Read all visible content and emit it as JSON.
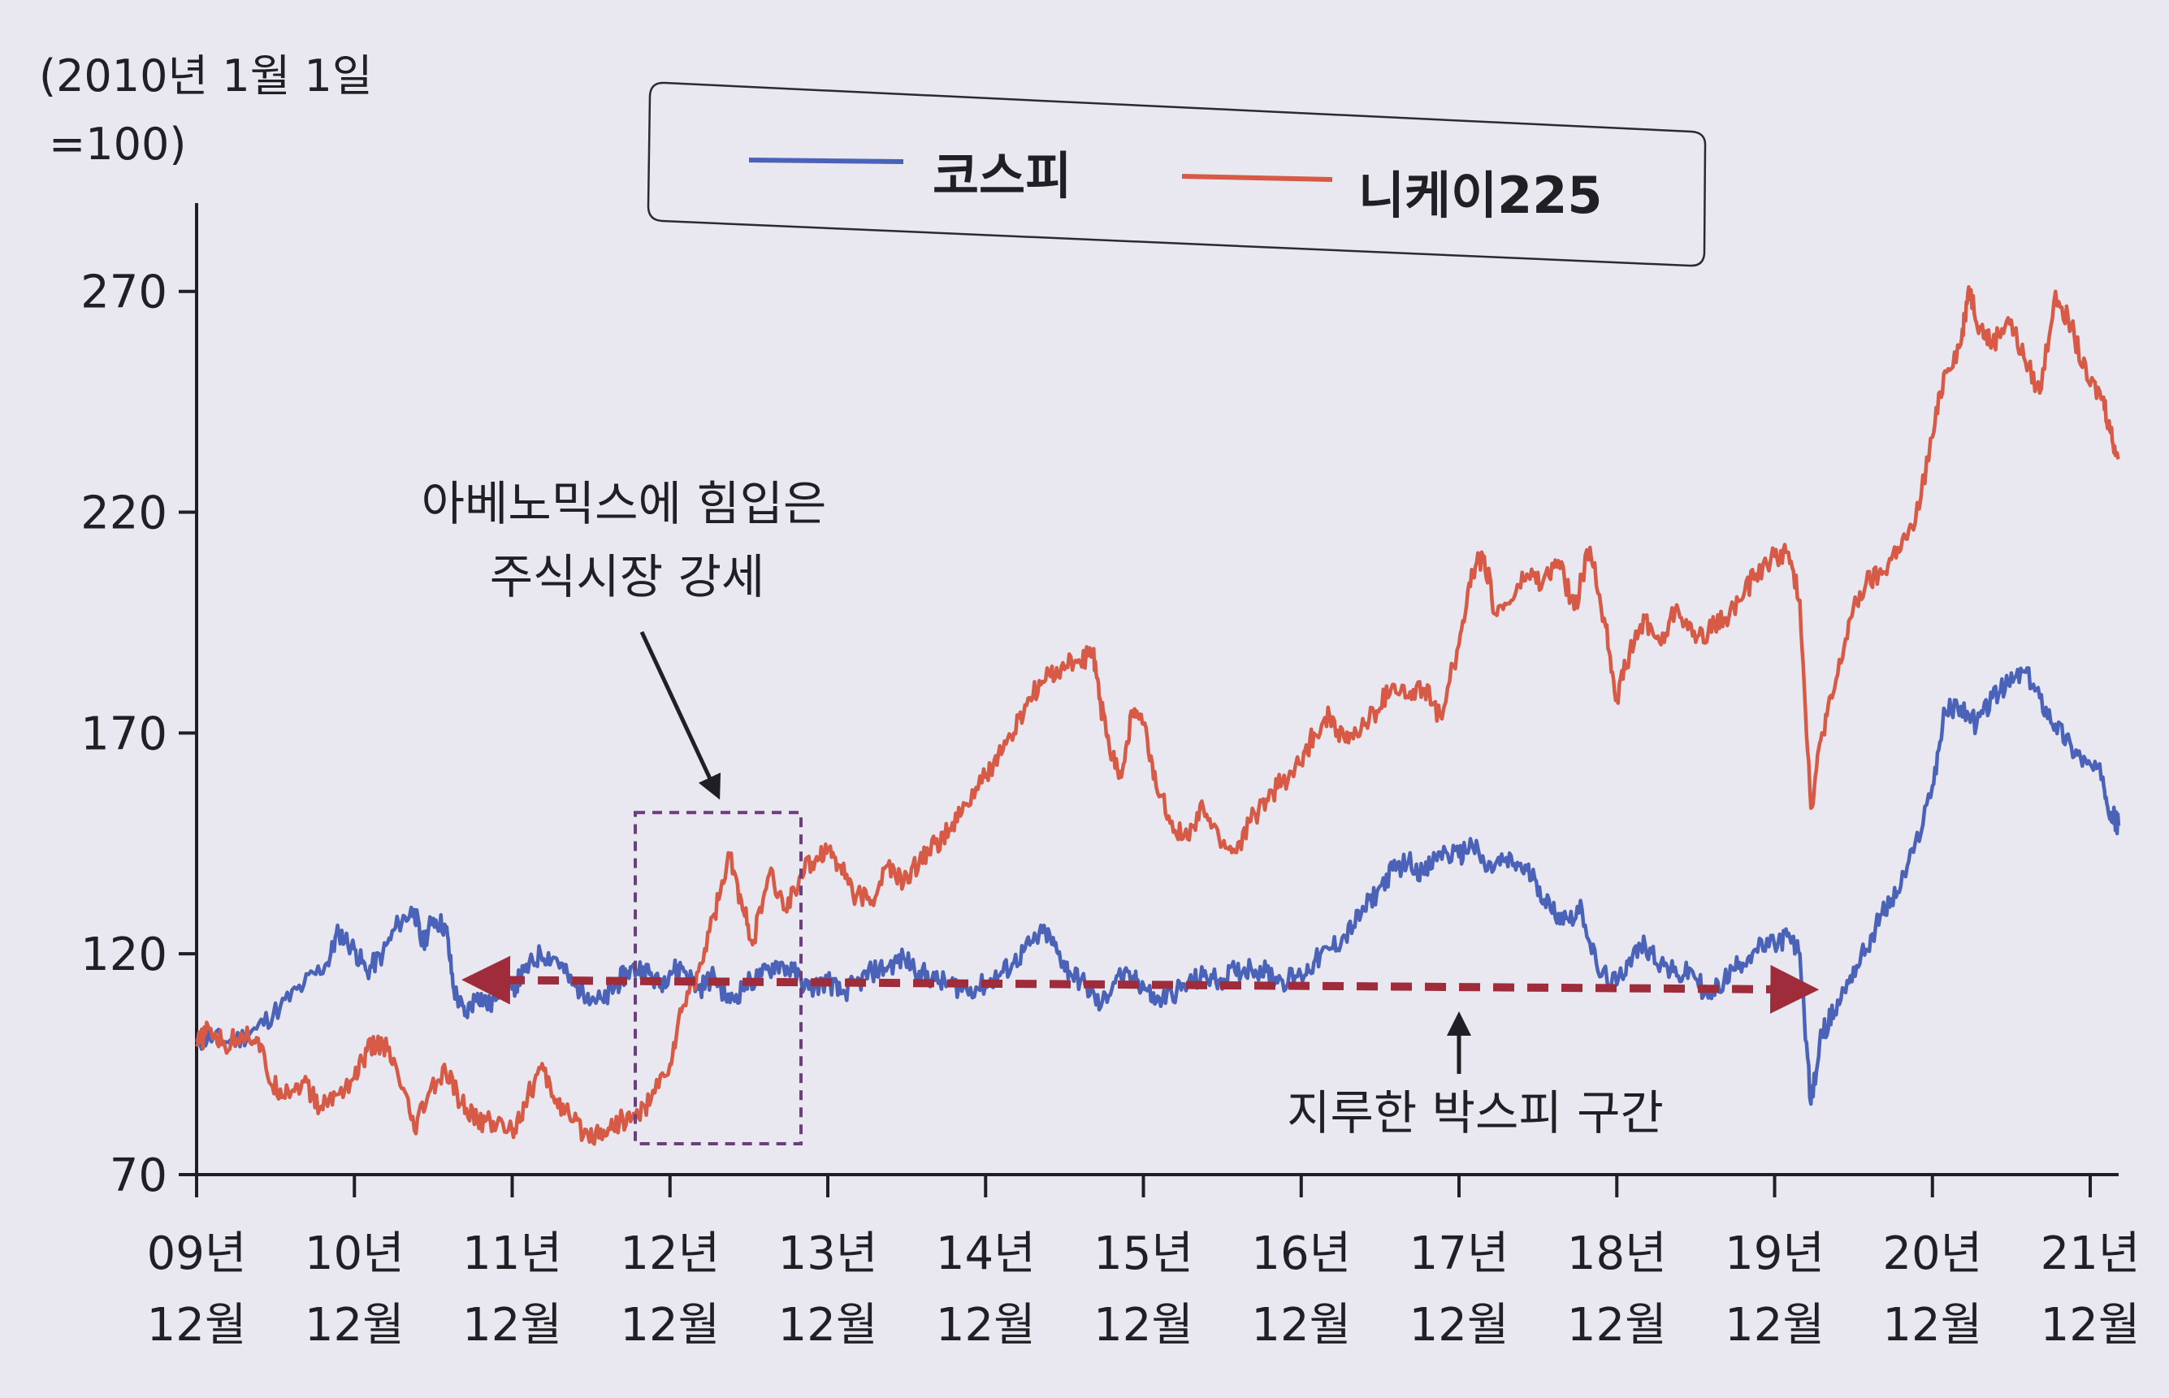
{
  "chart_data": {
    "type": "line",
    "title": "",
    "ylabel_lines": [
      "(2010년 1월 1일",
      "=100)"
    ],
    "xlabel": "",
    "ylim": [
      70,
      290
    ],
    "yticks": [
      70,
      120,
      170,
      220,
      270
    ],
    "xlim": [
      2009.92,
      2022.1
    ],
    "xticks": [
      {
        "x": 2009.92,
        "line1": "09년",
        "line2": "12월"
      },
      {
        "x": 2010.92,
        "line1": "10년",
        "line2": "12월"
      },
      {
        "x": 2011.92,
        "line1": "11년",
        "line2": "12월"
      },
      {
        "x": 2012.92,
        "line1": "12년",
        "line2": "12월"
      },
      {
        "x": 2013.92,
        "line1": "13년",
        "line2": "12월"
      },
      {
        "x": 2014.92,
        "line1": "14년",
        "line2": "12월"
      },
      {
        "x": 2015.92,
        "line1": "15년",
        "line2": "12월"
      },
      {
        "x": 2016.92,
        "line1": "16년",
        "line2": "12월"
      },
      {
        "x": 2017.92,
        "line1": "17년",
        "line2": "12월"
      },
      {
        "x": 2018.92,
        "line1": "18년",
        "line2": "12월"
      },
      {
        "x": 2019.92,
        "line1": "19년",
        "line2": "12월"
      },
      {
        "x": 2020.92,
        "line1": "20년",
        "line2": "12월"
      },
      {
        "x": 2021.92,
        "line1": "21년",
        "line2": "12월"
      }
    ],
    "legend_position": "top-center",
    "grid": false,
    "series": [
      {
        "name": "코스피",
        "color": "#4a63b8",
        "points": [
          [
            2009.92,
            100
          ],
          [
            2010.0,
            101
          ],
          [
            2010.15,
            100
          ],
          [
            2010.3,
            103
          ],
          [
            2010.45,
            108
          ],
          [
            2010.6,
            113
          ],
          [
            2010.75,
            118
          ],
          [
            2010.82,
            125
          ],
          [
            2010.92,
            121
          ],
          [
            2011.0,
            116
          ],
          [
            2011.1,
            120
          ],
          [
            2011.2,
            127
          ],
          [
            2011.3,
            130
          ],
          [
            2011.35,
            122
          ],
          [
            2011.42,
            128
          ],
          [
            2011.5,
            126
          ],
          [
            2011.55,
            112
          ],
          [
            2011.62,
            106
          ],
          [
            2011.7,
            111
          ],
          [
            2011.78,
            108
          ],
          [
            2011.85,
            114
          ],
          [
            2011.92,
            112
          ],
          [
            2012.0,
            116
          ],
          [
            2012.1,
            120
          ],
          [
            2012.2,
            119
          ],
          [
            2012.3,
            113
          ],
          [
            2012.4,
            111
          ],
          [
            2012.5,
            109
          ],
          [
            2012.58,
            113
          ],
          [
            2012.65,
            116
          ],
          [
            2012.75,
            117
          ],
          [
            2012.85,
            113
          ],
          [
            2012.92,
            116
          ],
          [
            2013.0,
            117
          ],
          [
            2013.1,
            112
          ],
          [
            2013.2,
            115
          ],
          [
            2013.3,
            109
          ],
          [
            2013.4,
            113
          ],
          [
            2013.5,
            115
          ],
          [
            2013.6,
            118
          ],
          [
            2013.7,
            116
          ],
          [
            2013.8,
            112
          ],
          [
            2013.92,
            114
          ],
          [
            2014.0,
            111
          ],
          [
            2014.1,
            113
          ],
          [
            2014.2,
            116
          ],
          [
            2014.3,
            117
          ],
          [
            2014.4,
            119
          ],
          [
            2014.5,
            116
          ],
          [
            2014.6,
            114
          ],
          [
            2014.7,
            113
          ],
          [
            2014.8,
            112
          ],
          [
            2014.92,
            113
          ],
          [
            2015.0,
            115
          ],
          [
            2015.1,
            118
          ],
          [
            2015.2,
            122
          ],
          [
            2015.3,
            125
          ],
          [
            2015.38,
            120
          ],
          [
            2015.45,
            116
          ],
          [
            2015.55,
            113
          ],
          [
            2015.65,
            108
          ],
          [
            2015.75,
            115
          ],
          [
            2015.85,
            114
          ],
          [
            2015.92,
            113
          ],
          [
            2016.0,
            109
          ],
          [
            2016.1,
            111
          ],
          [
            2016.2,
            113
          ],
          [
            2016.3,
            115
          ],
          [
            2016.4,
            114
          ],
          [
            2016.5,
            116
          ],
          [
            2016.6,
            117
          ],
          [
            2016.7,
            116
          ],
          [
            2016.8,
            114
          ],
          [
            2016.92,
            115
          ],
          [
            2017.0,
            118
          ],
          [
            2017.1,
            121
          ],
          [
            2017.2,
            124
          ],
          [
            2017.3,
            129
          ],
          [
            2017.4,
            134
          ],
          [
            2017.5,
            139
          ],
          [
            2017.6,
            141
          ],
          [
            2017.7,
            138
          ],
          [
            2017.8,
            143
          ],
          [
            2017.92,
            142
          ],
          [
            2018.0,
            145
          ],
          [
            2018.1,
            139
          ],
          [
            2018.2,
            141
          ],
          [
            2018.3,
            140
          ],
          [
            2018.4,
            137
          ],
          [
            2018.5,
            130
          ],
          [
            2018.6,
            128
          ],
          [
            2018.7,
            130
          ],
          [
            2018.8,
            116
          ],
          [
            2018.92,
            113
          ],
          [
            2019.0,
            119
          ],
          [
            2019.1,
            122
          ],
          [
            2019.2,
            118
          ],
          [
            2019.3,
            115
          ],
          [
            2019.4,
            116
          ],
          [
            2019.5,
            110
          ],
          [
            2019.6,
            114
          ],
          [
            2019.7,
            118
          ],
          [
            2019.8,
            121
          ],
          [
            2019.92,
            122
          ],
          [
            2020.0,
            124
          ],
          [
            2020.08,
            120
          ],
          [
            2020.15,
            86
          ],
          [
            2020.22,
            102
          ],
          [
            2020.3,
            107
          ],
          [
            2020.4,
            115
          ],
          [
            2020.5,
            121
          ],
          [
            2020.6,
            129
          ],
          [
            2020.7,
            134
          ],
          [
            2020.8,
            143
          ],
          [
            2020.92,
            158
          ],
          [
            2021.0,
            175
          ],
          [
            2021.1,
            176
          ],
          [
            2021.2,
            172
          ],
          [
            2021.3,
            178
          ],
          [
            2021.4,
            181
          ],
          [
            2021.5,
            184
          ],
          [
            2021.6,
            178
          ],
          [
            2021.7,
            172
          ],
          [
            2021.8,
            167
          ],
          [
            2021.9,
            163
          ],
          [
            2022.0,
            160
          ],
          [
            2022.05,
            152
          ],
          [
            2022.1,
            149
          ]
        ]
      },
      {
        "name": "니케이225",
        "color": "#d65a45",
        "points": [
          [
            2009.92,
            99
          ],
          [
            2010.0,
            103
          ],
          [
            2010.1,
            99
          ],
          [
            2010.2,
            102
          ],
          [
            2010.3,
            101
          ],
          [
            2010.4,
            90
          ],
          [
            2010.5,
            89
          ],
          [
            2010.6,
            91
          ],
          [
            2010.7,
            85
          ],
          [
            2010.8,
            88
          ],
          [
            2010.92,
            92
          ],
          [
            2011.0,
            98
          ],
          [
            2011.1,
            100
          ],
          [
            2011.2,
            92
          ],
          [
            2011.3,
            80
          ],
          [
            2011.4,
            89
          ],
          [
            2011.5,
            93
          ],
          [
            2011.6,
            86
          ],
          [
            2011.7,
            82
          ],
          [
            2011.8,
            82
          ],
          [
            2011.92,
            80
          ],
          [
            2012.0,
            86
          ],
          [
            2012.1,
            94
          ],
          [
            2012.2,
            87
          ],
          [
            2012.3,
            82
          ],
          [
            2012.4,
            79
          ],
          [
            2012.5,
            80
          ],
          [
            2012.6,
            82
          ],
          [
            2012.7,
            83
          ],
          [
            2012.8,
            87
          ],
          [
            2012.92,
            95
          ],
          [
            2013.0,
            108
          ],
          [
            2013.1,
            116
          ],
          [
            2013.2,
            129
          ],
          [
            2013.3,
            142
          ],
          [
            2013.38,
            130
          ],
          [
            2013.45,
            123
          ],
          [
            2013.55,
            138
          ],
          [
            2013.65,
            130
          ],
          [
            2013.75,
            138
          ],
          [
            2013.85,
            142
          ],
          [
            2013.92,
            144
          ],
          [
            2014.0,
            140
          ],
          [
            2014.1,
            133
          ],
          [
            2014.2,
            132
          ],
          [
            2014.3,
            140
          ],
          [
            2014.4,
            136
          ],
          [
            2014.5,
            141
          ],
          [
            2014.6,
            145
          ],
          [
            2014.7,
            148
          ],
          [
            2014.8,
            154
          ],
          [
            2014.92,
            160
          ],
          [
            2015.0,
            165
          ],
          [
            2015.1,
            170
          ],
          [
            2015.2,
            178
          ],
          [
            2015.3,
            182
          ],
          [
            2015.4,
            185
          ],
          [
            2015.5,
            186
          ],
          [
            2015.6,
            188
          ],
          [
            2015.65,
            176
          ],
          [
            2015.7,
            168
          ],
          [
            2015.78,
            160
          ],
          [
            2015.85,
            175
          ],
          [
            2015.92,
            172
          ],
          [
            2016.0,
            158
          ],
          [
            2016.1,
            150
          ],
          [
            2016.2,
            146
          ],
          [
            2016.3,
            153
          ],
          [
            2016.4,
            146
          ],
          [
            2016.5,
            143
          ],
          [
            2016.6,
            150
          ],
          [
            2016.7,
            155
          ],
          [
            2016.8,
            159
          ],
          [
            2016.92,
            163
          ],
          [
            2017.0,
            170
          ],
          [
            2017.1,
            174
          ],
          [
            2017.2,
            168
          ],
          [
            2017.3,
            171
          ],
          [
            2017.4,
            175
          ],
          [
            2017.5,
            181
          ],
          [
            2017.6,
            178
          ],
          [
            2017.7,
            180
          ],
          [
            2017.8,
            174
          ],
          [
            2017.92,
            190
          ],
          [
            2018.0,
            207
          ],
          [
            2018.08,
            210
          ],
          [
            2018.15,
            197
          ],
          [
            2018.25,
            200
          ],
          [
            2018.35,
            206
          ],
          [
            2018.45,
            204
          ],
          [
            2018.55,
            209
          ],
          [
            2018.65,
            198
          ],
          [
            2018.75,
            212
          ],
          [
            2018.85,
            194
          ],
          [
            2018.92,
            178
          ],
          [
            2019.0,
            188
          ],
          [
            2019.1,
            196
          ],
          [
            2019.2,
            190
          ],
          [
            2019.3,
            199
          ],
          [
            2019.4,
            192
          ],
          [
            2019.5,
            193
          ],
          [
            2019.6,
            196
          ],
          [
            2019.7,
            200
          ],
          [
            2019.8,
            206
          ],
          [
            2019.92,
            210
          ],
          [
            2020.0,
            211
          ],
          [
            2020.08,
            200
          ],
          [
            2020.15,
            153
          ],
          [
            2020.22,
            170
          ],
          [
            2020.3,
            180
          ],
          [
            2020.4,
            196
          ],
          [
            2020.5,
            204
          ],
          [
            2020.6,
            206
          ],
          [
            2020.7,
            212
          ],
          [
            2020.8,
            216
          ],
          [
            2020.92,
            237
          ],
          [
            2021.0,
            252
          ],
          [
            2021.1,
            258
          ],
          [
            2021.15,
            271
          ],
          [
            2021.22,
            262
          ],
          [
            2021.3,
            258
          ],
          [
            2021.4,
            264
          ],
          [
            2021.5,
            255
          ],
          [
            2021.6,
            247
          ],
          [
            2021.7,
            270
          ],
          [
            2021.8,
            262
          ],
          [
            2021.9,
            250
          ],
          [
            2022.0,
            246
          ],
          [
            2022.05,
            238
          ],
          [
            2022.1,
            232
          ]
        ]
      }
    ],
    "annotations": {
      "abenomics_lines": [
        "아베노믹스에 힘입은",
        "주식시장 강세"
      ],
      "abenomics_box": {
        "x0": 2012.7,
        "x1": 2013.75,
        "y0": 77,
        "y1": 152
      },
      "boxpi_label": "지루한 박스피 구간",
      "boxpi_range": {
        "x0": 2011.65,
        "x1": 2020.15,
        "y": 113
      }
    }
  }
}
